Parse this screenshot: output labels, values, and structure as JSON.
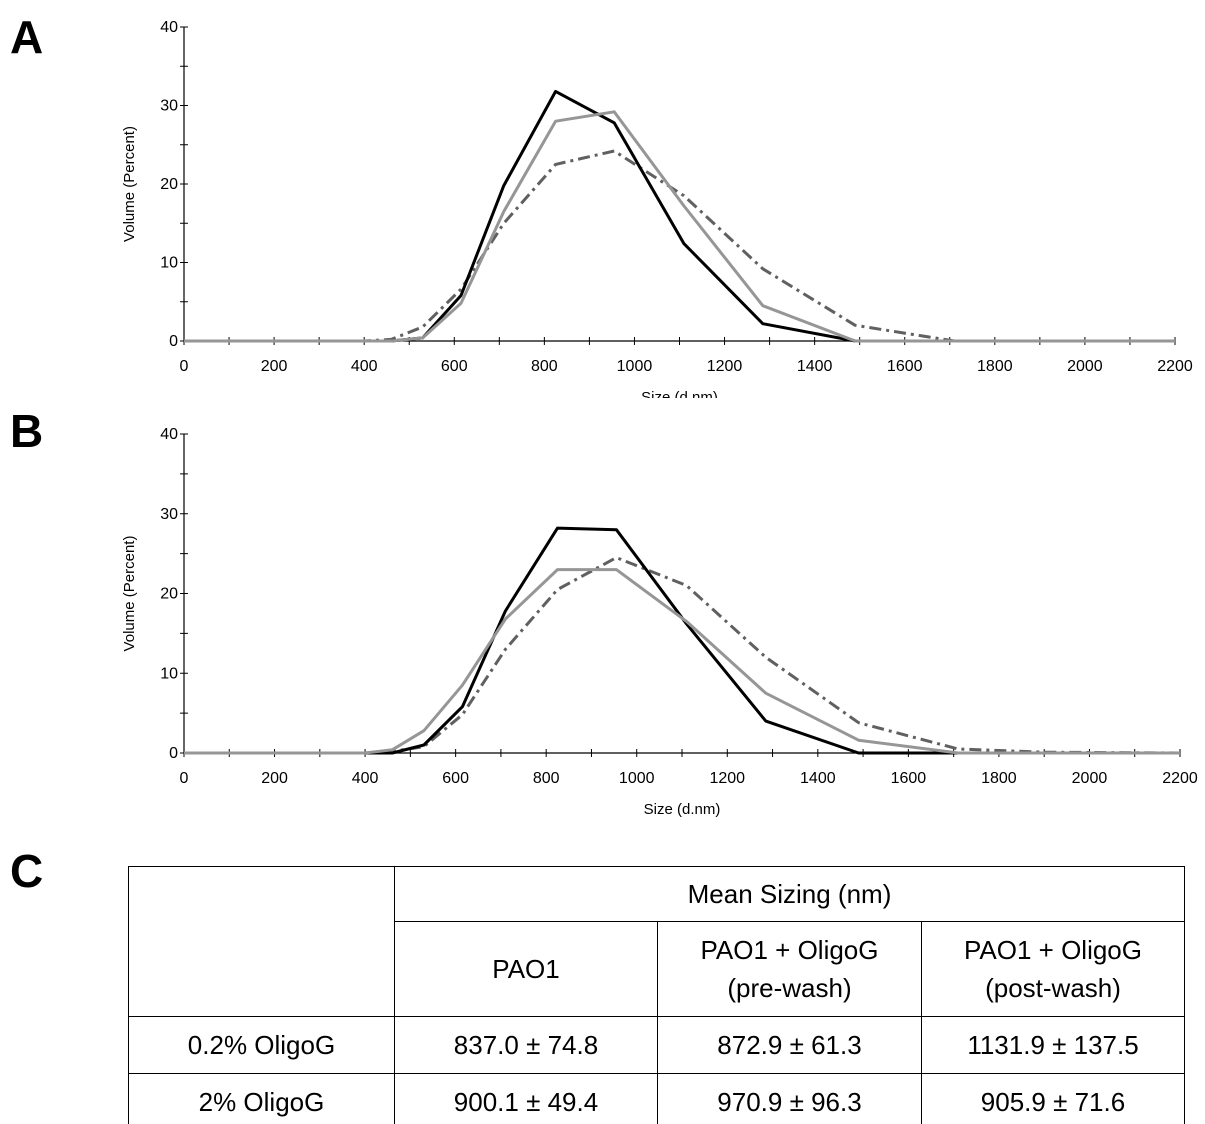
{
  "panels": {
    "a": "A",
    "b": "B",
    "c": "C"
  },
  "chart_data": [
    {
      "type": "line",
      "xlabel": "Size (d.nm)",
      "ylabel": "Volume (Percent)",
      "xlim": [
        0,
        2200
      ],
      "ylim": [
        0,
        40
      ],
      "x_ticks": [
        "0",
        "200",
        "400",
        "600",
        "800",
        "1000",
        "1200",
        "1400",
        "1600",
        "1800",
        "2000",
        "2200"
      ],
      "y_ticks": [
        "0",
        "10",
        "20",
        "30",
        "40"
      ],
      "grid": false,
      "series": [
        {
          "color": "#000000",
          "style": "solid",
          "points": [
            [
              0,
              0
            ],
            [
              400,
              0
            ],
            [
              460,
              0
            ],
            [
              530,
              0.4
            ],
            [
              615,
              5.8
            ],
            [
              710,
              19.8
            ],
            [
              825,
              31.8
            ],
            [
              955,
              27.8
            ],
            [
              1110,
              12.4
            ],
            [
              1285,
              2.2
            ],
            [
              1490,
              0
            ],
            [
              1710,
              0
            ],
            [
              1900,
              0
            ],
            [
              2200,
              0
            ]
          ]
        },
        {
          "color": "#969696",
          "style": "solid",
          "points": [
            [
              0,
              0
            ],
            [
              400,
              0
            ],
            [
              460,
              0
            ],
            [
              530,
              0.4
            ],
            [
              615,
              4.8
            ],
            [
              710,
              16.5
            ],
            [
              825,
              28
            ],
            [
              955,
              29.2
            ],
            [
              1110,
              17.2
            ],
            [
              1285,
              4.5
            ],
            [
              1490,
              0
            ],
            [
              1710,
              0
            ],
            [
              1900,
              0
            ],
            [
              2200,
              0
            ]
          ]
        },
        {
          "color": "#606060",
          "style": "dashdot",
          "points": [
            [
              0,
              0
            ],
            [
              400,
              0
            ],
            [
              460,
              0.2
            ],
            [
              530,
              1.8
            ],
            [
              615,
              6.6
            ],
            [
              710,
              15
            ],
            [
              825,
              22.5
            ],
            [
              955,
              24.2
            ],
            [
              1110,
              18.5
            ],
            [
              1285,
              9.2
            ],
            [
              1490,
              2
            ],
            [
              1710,
              0
            ],
            [
              1900,
              0
            ],
            [
              2200,
              0
            ]
          ]
        }
      ]
    },
    {
      "type": "line",
      "xlabel": "Size (d.nm)",
      "ylabel": "Volume (Percent)",
      "xlim": [
        0,
        2200
      ],
      "ylim": [
        0,
        40
      ],
      "x_ticks": [
        "0",
        "200",
        "400",
        "600",
        "800",
        "1000",
        "1200",
        "1400",
        "1600",
        "1800",
        "2000",
        "2200"
      ],
      "y_ticks": [
        "0",
        "10",
        "20",
        "30",
        "40"
      ],
      "grid": false,
      "series": [
        {
          "color": "#000000",
          "style": "solid",
          "points": [
            [
              0,
              0
            ],
            [
              400,
              0
            ],
            [
              460,
              0
            ],
            [
              530,
              1
            ],
            [
              615,
              5.8
            ],
            [
              710,
              17.8
            ],
            [
              825,
              28.2
            ],
            [
              955,
              28
            ],
            [
              1110,
              16.2
            ],
            [
              1285,
              4
            ],
            [
              1490,
              0
            ],
            [
              1710,
              0
            ],
            [
              1900,
              0
            ],
            [
              2200,
              0
            ]
          ]
        },
        {
          "color": "#969696",
          "style": "solid",
          "points": [
            [
              0,
              0
            ],
            [
              400,
              0
            ],
            [
              460,
              0.4
            ],
            [
              530,
              2.8
            ],
            [
              615,
              8.5
            ],
            [
              710,
              16.8
            ],
            [
              825,
              23
            ],
            [
              955,
              23
            ],
            [
              1110,
              16.5
            ],
            [
              1285,
              7.5
            ],
            [
              1490,
              1.6
            ],
            [
              1710,
              0
            ],
            [
              1900,
              0
            ],
            [
              2200,
              0
            ]
          ]
        },
        {
          "color": "#606060",
          "style": "dashdot",
          "points": [
            [
              0,
              0
            ],
            [
              400,
              0
            ],
            [
              460,
              0.2
            ],
            [
              530,
              0.8
            ],
            [
              615,
              4.8
            ],
            [
              710,
              13
            ],
            [
              825,
              20.5
            ],
            [
              955,
              24.5
            ],
            [
              1110,
              21
            ],
            [
              1285,
              12
            ],
            [
              1490,
              3.8
            ],
            [
              1710,
              0.5
            ],
            [
              1900,
              0.1
            ],
            [
              2200,
              0
            ]
          ]
        }
      ]
    },
    {
      "type": "table",
      "header_group": "Mean Sizing (nm)",
      "columns": [
        {
          "lines": [
            "PAO1"
          ]
        },
        {
          "lines": [
            "PAO1 + OligoG",
            "(pre-wash)"
          ]
        },
        {
          "lines": [
            "PAO1 + OligoG",
            "(post-wash)"
          ]
        }
      ],
      "rows": [
        {
          "label": "0.2% OligoG",
          "values": [
            "837.0 ± 74.8",
            "872.9 ± 61.3",
            "1131.9 ± 137.5"
          ]
        },
        {
          "label": "2% OligoG",
          "values": [
            "900.1 ± 49.4",
            "970.9 ± 96.3",
            "905.9 ± 71.6"
          ]
        }
      ]
    }
  ]
}
